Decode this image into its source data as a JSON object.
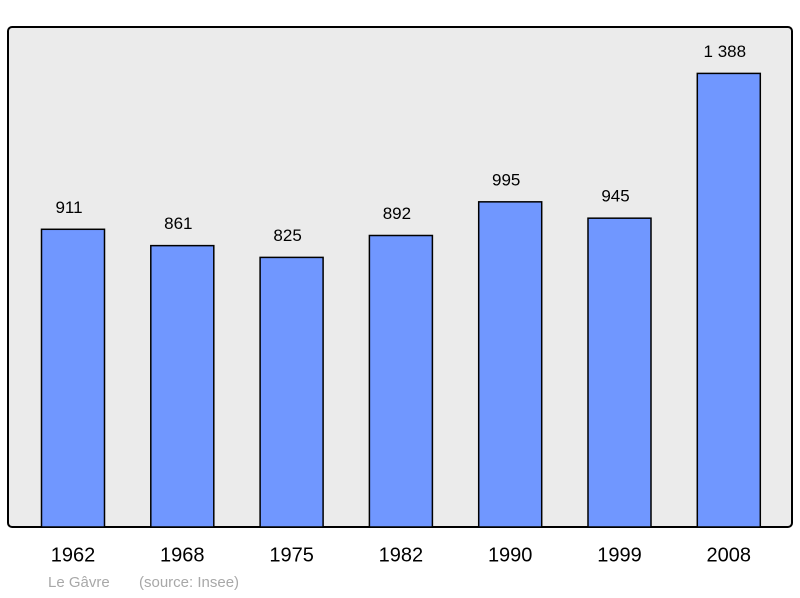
{
  "chart_data": {
    "type": "bar",
    "categories": [
      "1962",
      "1968",
      "1975",
      "1982",
      "1990",
      "1999",
      "2008"
    ],
    "values": [
      911,
      861,
      825,
      892,
      995,
      945,
      1388
    ],
    "value_labels": [
      "911",
      "861",
      "825",
      "892",
      "995",
      "945",
      "1 388"
    ],
    "color": "#7097ff",
    "ylim": [
      0,
      1530
    ],
    "grid": false,
    "location": "Le Gâvre",
    "source": "(source: Insee)"
  }
}
